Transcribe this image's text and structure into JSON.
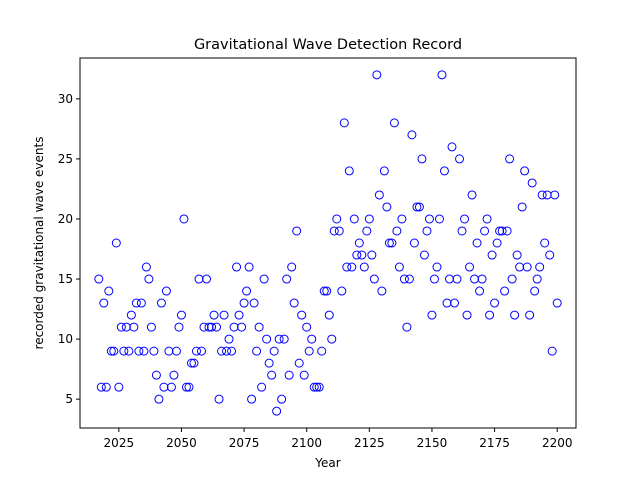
{
  "chart_data": {
    "type": "scatter",
    "title": "Gravitational Wave Detection Record",
    "xlabel": "Year",
    "ylabel": "recorded gravitational wave events",
    "xlim": [
      2009.5,
      2207.5
    ],
    "ylim": [
      2.6,
      33.4
    ],
    "xticks": [
      2025,
      2050,
      2075,
      2100,
      2125,
      2150,
      2175,
      2200
    ],
    "yticks": [
      5,
      10,
      15,
      20,
      25,
      30
    ],
    "grid": false,
    "marker": "open-circle",
    "marker_color": "#0000ff",
    "series": [
      {
        "x": [
          2017,
          2018,
          2019,
          2020,
          2021,
          2022,
          2023,
          2024,
          2025,
          2026,
          2027,
          2028,
          2029,
          2030,
          2031,
          2032,
          2033,
          2034,
          2035,
          2036,
          2037,
          2038,
          2039,
          2040,
          2041,
          2042,
          2043,
          2044,
          2045,
          2046,
          2047,
          2048,
          2049,
          2050,
          2051,
          2052,
          2053,
          2054,
          2055,
          2056,
          2057,
          2058,
          2059,
          2060,
          2061,
          2062,
          2063,
          2064,
          2065,
          2066,
          2067,
          2068,
          2069,
          2070,
          2071,
          2072,
          2073,
          2074,
          2075,
          2076,
          2077,
          2078,
          2079,
          2080,
          2081,
          2082,
          2083,
          2084,
          2085,
          2086,
          2087,
          2088,
          2089,
          2090,
          2091,
          2092,
          2093,
          2094,
          2095,
          2096,
          2097,
          2098,
          2099,
          2100,
          2101,
          2102,
          2103,
          2104,
          2105,
          2106,
          2107,
          2108,
          2109,
          2110,
          2111,
          2112,
          2113,
          2114,
          2115,
          2116,
          2117,
          2118,
          2119,
          2120,
          2121,
          2122,
          2123,
          2124,
          2125,
          2126,
          2127,
          2128,
          2129,
          2130,
          2131,
          2132,
          2133,
          2134,
          2135,
          2136,
          2137,
          2138,
          2139,
          2140,
          2141,
          2142,
          2143,
          2144,
          2145,
          2146,
          2147,
          2148,
          2149,
          2150,
          2151,
          2152,
          2153,
          2154,
          2155,
          2156,
          2157,
          2158,
          2159,
          2160,
          2161,
          2162,
          2163,
          2164,
          2165,
          2166,
          2167,
          2168,
          2169,
          2170,
          2171,
          2172,
          2173,
          2174,
          2175,
          2176,
          2177,
          2178,
          2179,
          2180,
          2181,
          2182,
          2183,
          2184,
          2185,
          2186,
          2187,
          2188,
          2189,
          2190,
          2191,
          2192,
          2193,
          2194,
          2195,
          2196,
          2197,
          2198,
          2199,
          2200
        ],
        "y": [
          15,
          6,
          13,
          6,
          14,
          9,
          9,
          18,
          6,
          11,
          9,
          11,
          9,
          12,
          11,
          13,
          9,
          13,
          9,
          16,
          15,
          11,
          9,
          7,
          5,
          13,
          6,
          14,
          9,
          6,
          7,
          9,
          11,
          12,
          20,
          6,
          6,
          8,
          8,
          9,
          15,
          9,
          11,
          15,
          11,
          11,
          12,
          11,
          5,
          9,
          12,
          9,
          10,
          9,
          11,
          16,
          12,
          11,
          13,
          14,
          16,
          5,
          13,
          9,
          11,
          6,
          15,
          10,
          8,
          7,
          9,
          4,
          10,
          5,
          10,
          15,
          7,
          16,
          13,
          19,
          8,
          12,
          7,
          11,
          9,
          10,
          6,
          6,
          6,
          9,
          14,
          14,
          12,
          10,
          19,
          20,
          19,
          14,
          28,
          16,
          24,
          16,
          20,
          17,
          18,
          17,
          16,
          19,
          20,
          17,
          15,
          32,
          22,
          14,
          24,
          21,
          18,
          18,
          28,
          19,
          16,
          20,
          15,
          11,
          15,
          27,
          18,
          21,
          21,
          25,
          17,
          19,
          20,
          12,
          15,
          16,
          20,
          32,
          24,
          13,
          15,
          26,
          13,
          15,
          25,
          19,
          20,
          12,
          16,
          22,
          15,
          18,
          14,
          15,
          19,
          20,
          12,
          17,
          13,
          18,
          19,
          19,
          14,
          19,
          25,
          15,
          12,
          17,
          16,
          21,
          24,
          16,
          12,
          23,
          14,
          15,
          16,
          22,
          18,
          22,
          17,
          9,
          22,
          13
        ]
      }
    ]
  }
}
